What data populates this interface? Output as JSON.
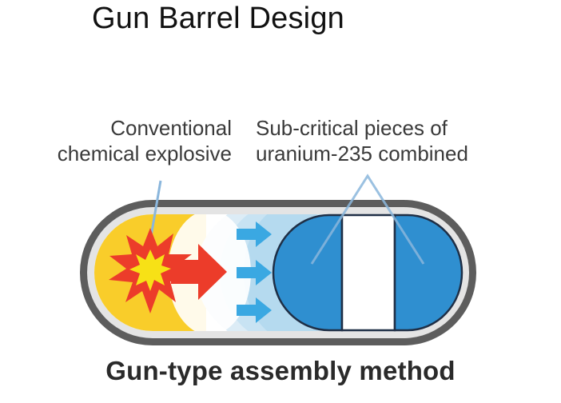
{
  "title": "Gun Barrel Design",
  "labels": {
    "explosive_line1": "Conventional",
    "explosive_line2": "chemical explosive",
    "uranium_line1": "Sub-critical pieces of",
    "uranium_line2": "uranium-235 combined"
  },
  "caption": "Gun-type assembly method",
  "colors": {
    "casing": "#5d5d5d",
    "explosive_fill": "#f9cd2a",
    "blast_red": "#ec3c2a",
    "uranium_blue": "#2f8fd0",
    "shockwave_blue": "#b7dcef",
    "arrow_blue": "#3aa8e2"
  }
}
